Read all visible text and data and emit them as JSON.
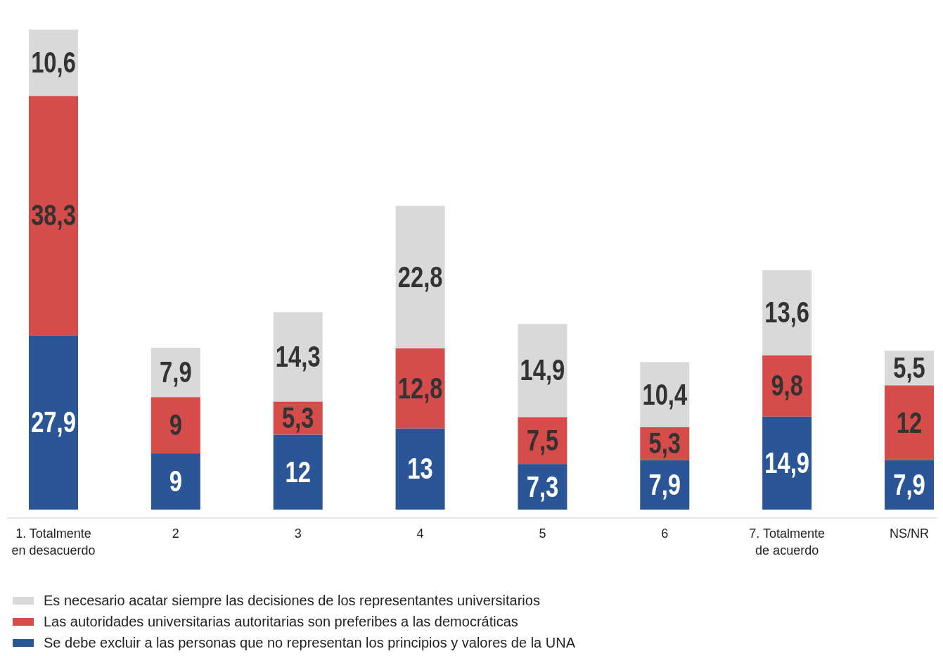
{
  "chart_data": {
    "type": "bar",
    "stacked": true,
    "categories": [
      "1. Totalmente\nen desacuerdo",
      "2",
      "3",
      "4",
      "5",
      "6",
      "7. Totalmente\nde acuerdo",
      "NS/NR"
    ],
    "series": [
      {
        "name": "Se debe excluir a las personas que no representan los principios y valores de la UNA",
        "color": "#2a5597",
        "values": [
          27.9,
          9,
          12,
          13,
          7.3,
          7.9,
          14.9,
          7.9
        ],
        "value_labels": [
          "27,9",
          "9",
          "12",
          "13",
          "7,3",
          "7,9",
          "14,9",
          "7,9"
        ]
      },
      {
        "name": "Las autoridades universitarias autoritarias son preferibes a las democráticas",
        "color": "#d64c4a",
        "values": [
          38.3,
          9,
          5.3,
          12.8,
          7.5,
          5.3,
          9.8,
          12
        ],
        "value_labels": [
          "38,3",
          "9",
          "5,3",
          "12,8",
          "7,5",
          "5,3",
          "9,8",
          "12"
        ]
      },
      {
        "name": "Es necesario acatar siempre las decisiones de los representantes universitarios",
        "color": "#d9d9d9",
        "values": [
          10.6,
          7.9,
          14.3,
          22.8,
          14.9,
          10.4,
          13.6,
          5.5
        ],
        "value_labels": [
          "10,6",
          "7,9",
          "14,3",
          "22,8",
          "14,9",
          "10,4",
          "13,6",
          "5,5"
        ]
      }
    ],
    "legend": "bottom"
  }
}
